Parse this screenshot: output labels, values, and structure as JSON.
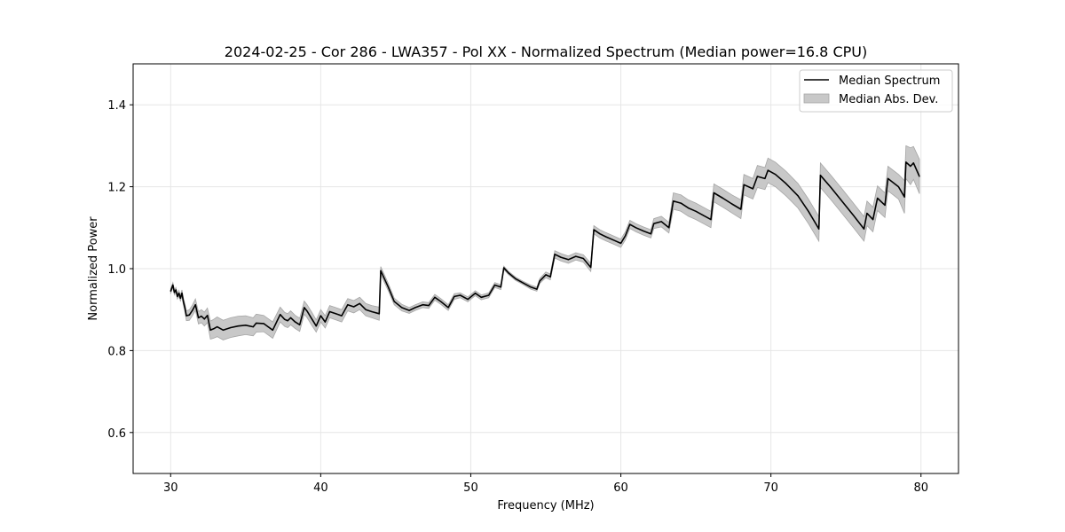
{
  "chart_data": {
    "type": "line",
    "title": "2024-02-25 - Cor 286 - LWA357 - Pol XX - Normalized Spectrum (Median power=16.8 CPU)",
    "xlabel": "Frequency (MHz)",
    "ylabel": "Normalized Power",
    "xlim": [
      27.5,
      82.5
    ],
    "ylim": [
      0.5,
      1.5
    ],
    "xticks": [
      30,
      40,
      50,
      60,
      70,
      80
    ],
    "xtick_labels": [
      "30",
      "40",
      "50",
      "60",
      "70",
      "80"
    ],
    "yticks": [
      0.6,
      0.8,
      1.0,
      1.2,
      1.4
    ],
    "ytick_labels": [
      "0.6",
      "0.8",
      "1.0",
      "1.2",
      "1.4"
    ],
    "grid": true,
    "legend_position": "top-right",
    "legend": [
      "Median Spectrum",
      "Median Abs. Dev."
    ],
    "colors": {
      "line": "#000000",
      "band_fill": "#c8c8c8",
      "band_edge": "#a6a6a6",
      "grid": "#e6e6e6"
    },
    "series": [
      {
        "name": "Median Spectrum",
        "x": [
          30.0,
          30.15,
          30.25,
          30.35,
          30.45,
          30.55,
          30.65,
          30.75,
          30.85,
          30.95,
          31.05,
          31.25,
          31.45,
          31.65,
          31.85,
          32.05,
          32.25,
          32.45,
          32.65,
          32.85,
          33.1,
          33.5,
          34.0,
          34.5,
          35.0,
          35.5,
          35.7,
          36.2,
          36.5,
          36.8,
          37.3,
          37.6,
          37.8,
          38.0,
          38.3,
          38.6,
          38.9,
          39.1,
          39.4,
          39.7,
          40.0,
          40.3,
          40.6,
          41.0,
          41.4,
          41.8,
          42.2,
          42.6,
          43.0,
          43.4,
          43.9,
          44.0,
          44.5,
          44.9,
          45.4,
          45.9,
          46.3,
          46.8,
          47.2,
          47.6,
          48.0,
          48.5,
          48.9,
          49.3,
          49.8,
          50.3,
          50.7,
          51.2,
          51.6,
          52.0,
          52.2,
          52.5,
          53.0,
          53.5,
          54.0,
          54.4,
          54.6,
          55.0,
          55.3,
          55.6,
          56.0,
          56.5,
          57.0,
          57.5,
          58.0,
          58.2,
          58.6,
          59.0,
          59.5,
          60.0,
          60.3,
          60.6,
          61.0,
          61.5,
          62.0,
          62.2,
          62.7,
          63.2,
          63.5,
          64.0,
          64.5,
          65.0,
          65.5,
          66.0,
          66.2,
          66.8,
          67.4,
          68.0,
          68.2,
          68.8,
          69.1,
          69.6,
          69.8,
          70.3,
          71.0,
          71.8,
          72.5,
          73.2,
          73.3,
          74.0,
          74.8,
          75.5,
          76.2,
          76.4,
          76.8,
          77.1,
          77.6,
          77.8,
          78.5,
          78.9,
          79.0,
          79.3,
          79.5,
          79.9
        ],
        "values": [
          0.945,
          0.96,
          0.942,
          0.948,
          0.932,
          0.94,
          0.928,
          0.94,
          0.92,
          0.905,
          0.885,
          0.887,
          0.898,
          0.912,
          0.88,
          0.884,
          0.877,
          0.886,
          0.85,
          0.853,
          0.858,
          0.85,
          0.856,
          0.86,
          0.862,
          0.858,
          0.867,
          0.866,
          0.858,
          0.85,
          0.888,
          0.876,
          0.873,
          0.88,
          0.87,
          0.863,
          0.905,
          0.896,
          0.878,
          0.86,
          0.885,
          0.87,
          0.895,
          0.89,
          0.885,
          0.912,
          0.907,
          0.915,
          0.9,
          0.895,
          0.89,
          0.995,
          0.955,
          0.92,
          0.905,
          0.898,
          0.905,
          0.912,
          0.91,
          0.93,
          0.92,
          0.905,
          0.932,
          0.935,
          0.925,
          0.94,
          0.93,
          0.935,
          0.96,
          0.955,
          1.002,
          0.99,
          0.975,
          0.965,
          0.955,
          0.95,
          0.97,
          0.985,
          0.98,
          1.035,
          1.028,
          1.022,
          1.03,
          1.025,
          1.003,
          1.095,
          1.085,
          1.078,
          1.07,
          1.062,
          1.08,
          1.108,
          1.1,
          1.092,
          1.085,
          1.11,
          1.115,
          1.1,
          1.165,
          1.16,
          1.148,
          1.14,
          1.13,
          1.12,
          1.185,
          1.172,
          1.158,
          1.145,
          1.205,
          1.195,
          1.225,
          1.22,
          1.24,
          1.23,
          1.208,
          1.178,
          1.14,
          1.097,
          1.228,
          1.198,
          1.162,
          1.13,
          1.097,
          1.135,
          1.12,
          1.172,
          1.155,
          1.22,
          1.2,
          1.175,
          1.26,
          1.25,
          1.258,
          1.225
        ]
      },
      {
        "name": "Median Abs. Dev.",
        "x": [
          30.0,
          30.15,
          30.25,
          30.35,
          30.45,
          30.55,
          30.65,
          30.75,
          30.85,
          30.95,
          31.05,
          31.25,
          31.45,
          31.65,
          31.85,
          32.05,
          32.25,
          32.45,
          32.65,
          32.85,
          33.1,
          33.5,
          34.0,
          34.5,
          35.0,
          35.5,
          35.7,
          36.2,
          36.5,
          36.8,
          37.3,
          37.6,
          37.8,
          38.0,
          38.3,
          38.6,
          38.9,
          39.1,
          39.4,
          39.7,
          40.0,
          40.3,
          40.6,
          41.0,
          41.4,
          41.8,
          42.2,
          42.6,
          43.0,
          43.4,
          43.9,
          44.0,
          44.5,
          44.9,
          45.4,
          45.9,
          46.3,
          46.8,
          47.2,
          47.6,
          48.0,
          48.5,
          48.9,
          49.3,
          49.8,
          50.3,
          50.7,
          51.2,
          51.6,
          52.0,
          52.2,
          52.5,
          53.0,
          53.5,
          54.0,
          54.4,
          54.6,
          55.0,
          55.3,
          55.6,
          56.0,
          56.5,
          57.0,
          57.5,
          58.0,
          58.2,
          58.6,
          59.0,
          59.5,
          60.0,
          60.3,
          60.6,
          61.0,
          61.5,
          62.0,
          62.2,
          62.7,
          63.2,
          63.5,
          64.0,
          64.5,
          65.0,
          65.5,
          66.0,
          66.2,
          66.8,
          67.4,
          68.0,
          68.2,
          68.8,
          69.1,
          69.6,
          69.8,
          70.3,
          71.0,
          71.8,
          72.5,
          73.2,
          73.3,
          74.0,
          74.8,
          75.5,
          76.2,
          76.4,
          76.8,
          77.1,
          77.6,
          77.8,
          78.5,
          78.9,
          79.0,
          79.3,
          79.5,
          79.9
        ],
        "values": [
          0.006,
          0.006,
          0.006,
          0.006,
          0.006,
          0.007,
          0.007,
          0.008,
          0.009,
          0.01,
          0.012,
          0.013,
          0.013,
          0.014,
          0.015,
          0.016,
          0.017,
          0.018,
          0.022,
          0.023,
          0.024,
          0.024,
          0.024,
          0.024,
          0.023,
          0.022,
          0.022,
          0.02,
          0.02,
          0.02,
          0.018,
          0.017,
          0.017,
          0.017,
          0.016,
          0.016,
          0.016,
          0.016,
          0.016,
          0.015,
          0.015,
          0.015,
          0.015,
          0.015,
          0.015,
          0.015,
          0.015,
          0.015,
          0.015,
          0.015,
          0.016,
          0.01,
          0.009,
          0.008,
          0.008,
          0.007,
          0.007,
          0.007,
          0.007,
          0.007,
          0.007,
          0.007,
          0.007,
          0.006,
          0.006,
          0.006,
          0.006,
          0.006,
          0.006,
          0.006,
          0.004,
          0.004,
          0.004,
          0.004,
          0.005,
          0.005,
          0.006,
          0.007,
          0.007,
          0.009,
          0.009,
          0.009,
          0.009,
          0.009,
          0.01,
          0.01,
          0.01,
          0.01,
          0.01,
          0.01,
          0.01,
          0.01,
          0.01,
          0.01,
          0.01,
          0.012,
          0.013,
          0.013,
          0.02,
          0.02,
          0.02,
          0.02,
          0.02,
          0.02,
          0.022,
          0.022,
          0.022,
          0.023,
          0.025,
          0.025,
          0.027,
          0.027,
          0.03,
          0.03,
          0.03,
          0.03,
          0.03,
          0.03,
          0.03,
          0.03,
          0.03,
          0.03,
          0.03,
          0.03,
          0.03,
          0.03,
          0.03,
          0.03,
          0.03,
          0.04,
          0.04,
          0.045,
          0.04,
          0.042
        ]
      }
    ]
  }
}
